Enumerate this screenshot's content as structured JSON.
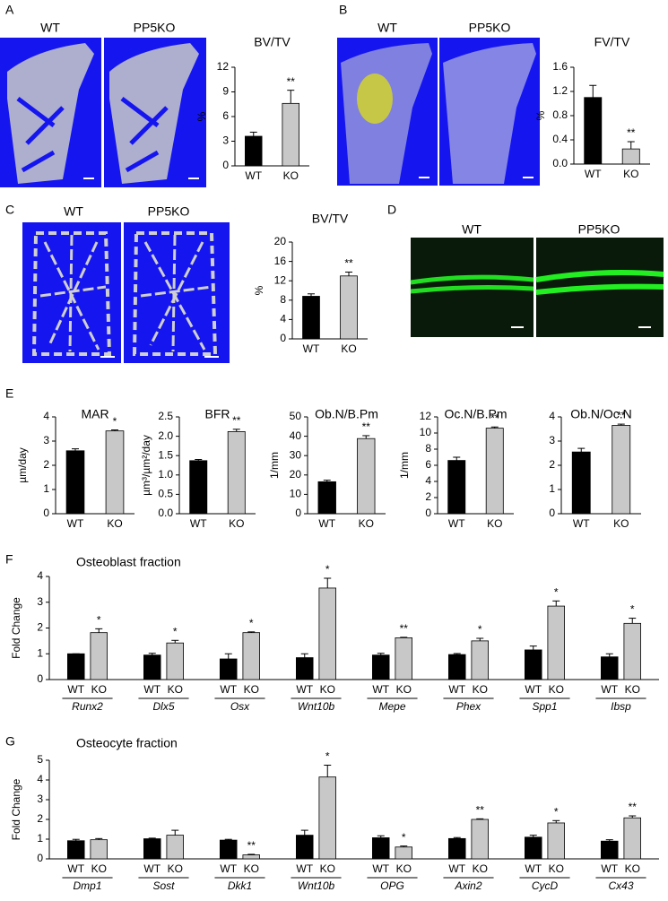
{
  "panel_labels": [
    "A",
    "B",
    "C",
    "D",
    "E",
    "F",
    "G"
  ],
  "images": [
    {
      "labels": [
        "WT",
        "PP5KO"
      ]
    },
    {
      "labels": [
        "WT",
        "PP5KO"
      ]
    },
    {
      "labels": [
        "WT",
        "PP5KO"
      ]
    },
    {
      "labels": [
        "WT",
        "PP5KO"
      ]
    }
  ],
  "chart_data": [
    {
      "type": "bar",
      "title": "BV/TV",
      "y_label": "%",
      "categories": [
        "WT",
        "KO"
      ],
      "values": [
        3.6,
        7.6
      ],
      "errors": [
        0.5,
        1.6
      ],
      "colors": [
        "#000000",
        "#c8c8c8"
      ],
      "significance": [
        null,
        "**"
      ],
      "ylim": [
        0,
        12
      ],
      "yticks": [
        0,
        3,
        6,
        9,
        12
      ]
    },
    {
      "type": "bar",
      "title": "FV/TV",
      "y_label": "%",
      "categories": [
        "WT",
        "KO"
      ],
      "values": [
        1.1,
        0.25
      ],
      "errors": [
        0.2,
        0.12
      ],
      "colors": [
        "#000000",
        "#c8c8c8"
      ],
      "significance": [
        null,
        "**"
      ],
      "ylim": [
        0,
        1.6
      ],
      "yticks": [
        {
          "value": 0,
          "label": "0.0"
        },
        0.4,
        0.8,
        1.2,
        1.6
      ]
    },
    {
      "type": "bar",
      "title": "BV/TV",
      "y_label": "%",
      "categories": [
        "WT",
        "KO"
      ],
      "values": [
        8.8,
        13.0
      ],
      "errors": [
        0.5,
        0.8
      ],
      "colors": [
        "#000000",
        "#c8c8c8"
      ],
      "significance": [
        null,
        "**"
      ],
      "ylim": [
        0,
        20
      ],
      "yticks": [
        0,
        4,
        8,
        12,
        16,
        20
      ]
    },
    {
      "type": "bar",
      "title": "MAR",
      "y_label": "µm/day",
      "categories": [
        "WT",
        "KO"
      ],
      "values": [
        2.6,
        3.42
      ],
      "errors": [
        0.08,
        0.04
      ],
      "colors": [
        "#000000",
        "#c8c8c8"
      ],
      "significance": [
        null,
        "*"
      ],
      "ylim": [
        0,
        4
      ],
      "yticks": [
        0,
        1,
        2,
        3,
        4
      ]
    },
    {
      "type": "bar",
      "title": "BFR",
      "y_label": "µm³/µm²/day",
      "categories": [
        "WT",
        "KO"
      ],
      "values": [
        1.37,
        2.12
      ],
      "errors": [
        0.03,
        0.06
      ],
      "colors": [
        "#000000",
        "#c8c8c8"
      ],
      "significance": [
        null,
        "**"
      ],
      "ylim": [
        0,
        2.5
      ],
      "yticks": [
        {
          "value": 0,
          "label": "0.0"
        },
        0.5,
        {
          "value": 1,
          "label": "1.0"
        },
        1.5,
        {
          "value": 2,
          "label": "2.0"
        },
        2.5
      ]
    },
    {
      "type": "bar",
      "title": "Ob.N/B.Pm",
      "y_label": "1/mm",
      "categories": [
        "WT",
        "KO"
      ],
      "values": [
        16.5,
        38.8
      ],
      "errors": [
        0.8,
        1.5
      ],
      "colors": [
        "#000000",
        "#c8c8c8"
      ],
      "significance": [
        null,
        "**"
      ],
      "ylim": [
        0,
        50
      ],
      "yticks": [
        0,
        10,
        20,
        30,
        40,
        50
      ]
    },
    {
      "type": "bar",
      "title": "Oc.N/B.Pm",
      "y_label": "1/mm",
      "categories": [
        "WT",
        "KO"
      ],
      "values": [
        6.6,
        10.6
      ],
      "errors": [
        0.4,
        0.15
      ],
      "colors": [
        "#000000",
        "#c8c8c8"
      ],
      "significance": [
        null,
        "**"
      ],
      "ylim": [
        0,
        12
      ],
      "yticks": [
        0,
        2,
        4,
        6,
        8,
        10,
        12
      ]
    },
    {
      "type": "bar",
      "title": "Ob.N/Oc.N",
      "categories": [
        "WT",
        "KO"
      ],
      "values": [
        2.55,
        3.65
      ],
      "errors": [
        0.15,
        0.05
      ],
      "colors": [
        "#000000",
        "#c8c8c8"
      ],
      "significance": [
        null,
        "**"
      ],
      "ylim": [
        0,
        4
      ],
      "yticks": [
        0,
        1,
        2,
        3,
        4
      ]
    },
    {
      "type": "grouped-bar",
      "title": "Osteoblast fraction",
      "y_label": "Fold Change",
      "groups": [
        "Runx2",
        "Dlx5",
        "Osx",
        "Wnt10b",
        "Mepe",
        "Phex",
        "Spp1",
        "Ibsp"
      ],
      "series": [
        {
          "name": "WT",
          "color": "#000000",
          "values": [
            1,
            0.95,
            0.8,
            0.85,
            0.95,
            0.97,
            1.15,
            0.88
          ],
          "errors": [
            0,
            0.07,
            0.2,
            0.15,
            0.07,
            0.04,
            0.15,
            0.12
          ]
        },
        {
          "name": "KO",
          "color": "#c8c8c8",
          "values": [
            1.82,
            1.42,
            1.82,
            3.55,
            1.62,
            1.5,
            2.85,
            2.18
          ],
          "errors": [
            0.15,
            0.1,
            0.03,
            0.38,
            0.02,
            0.1,
            0.2,
            0.2
          ],
          "significance": [
            "*",
            "*",
            "*",
            "*",
            "**",
            "*",
            "*",
            "*"
          ]
        }
      ],
      "ylim": [
        0,
        4
      ],
      "yticks": [
        0,
        1,
        2,
        3,
        4
      ]
    },
    {
      "type": "grouped-bar",
      "title": "Osteocyte fraction",
      "y_label": "Fold Change",
      "groups": [
        "Dmp1",
        "Sost",
        "Dkk1",
        "Wnt10b",
        "OPG",
        "Axin2",
        "CycD",
        "Cx43"
      ],
      "series": [
        {
          "name": "WT",
          "color": "#000000",
          "values": [
            0.92,
            1.02,
            0.95,
            1.2,
            1.07,
            1.03,
            1.1,
            0.9
          ],
          "errors": [
            0.07,
            0.03,
            0.04,
            0.25,
            0.1,
            0.05,
            0.1,
            0.07
          ]
        },
        {
          "name": "KO",
          "color": "#c8c8c8",
          "values": [
            0.97,
            1.2,
            0.2,
            4.15,
            0.6,
            2.0,
            1.82,
            2.08
          ],
          "errors": [
            0.06,
            0.25,
            0.03,
            0.6,
            0.05,
            0.03,
            0.12,
            0.1
          ],
          "significance": [
            null,
            null,
            "**",
            "*",
            "*",
            "**",
            "*",
            "**"
          ]
        }
      ],
      "ylim": [
        0,
        5
      ],
      "yticks": [
        0,
        1,
        2,
        3,
        4,
        5
      ]
    }
  ]
}
